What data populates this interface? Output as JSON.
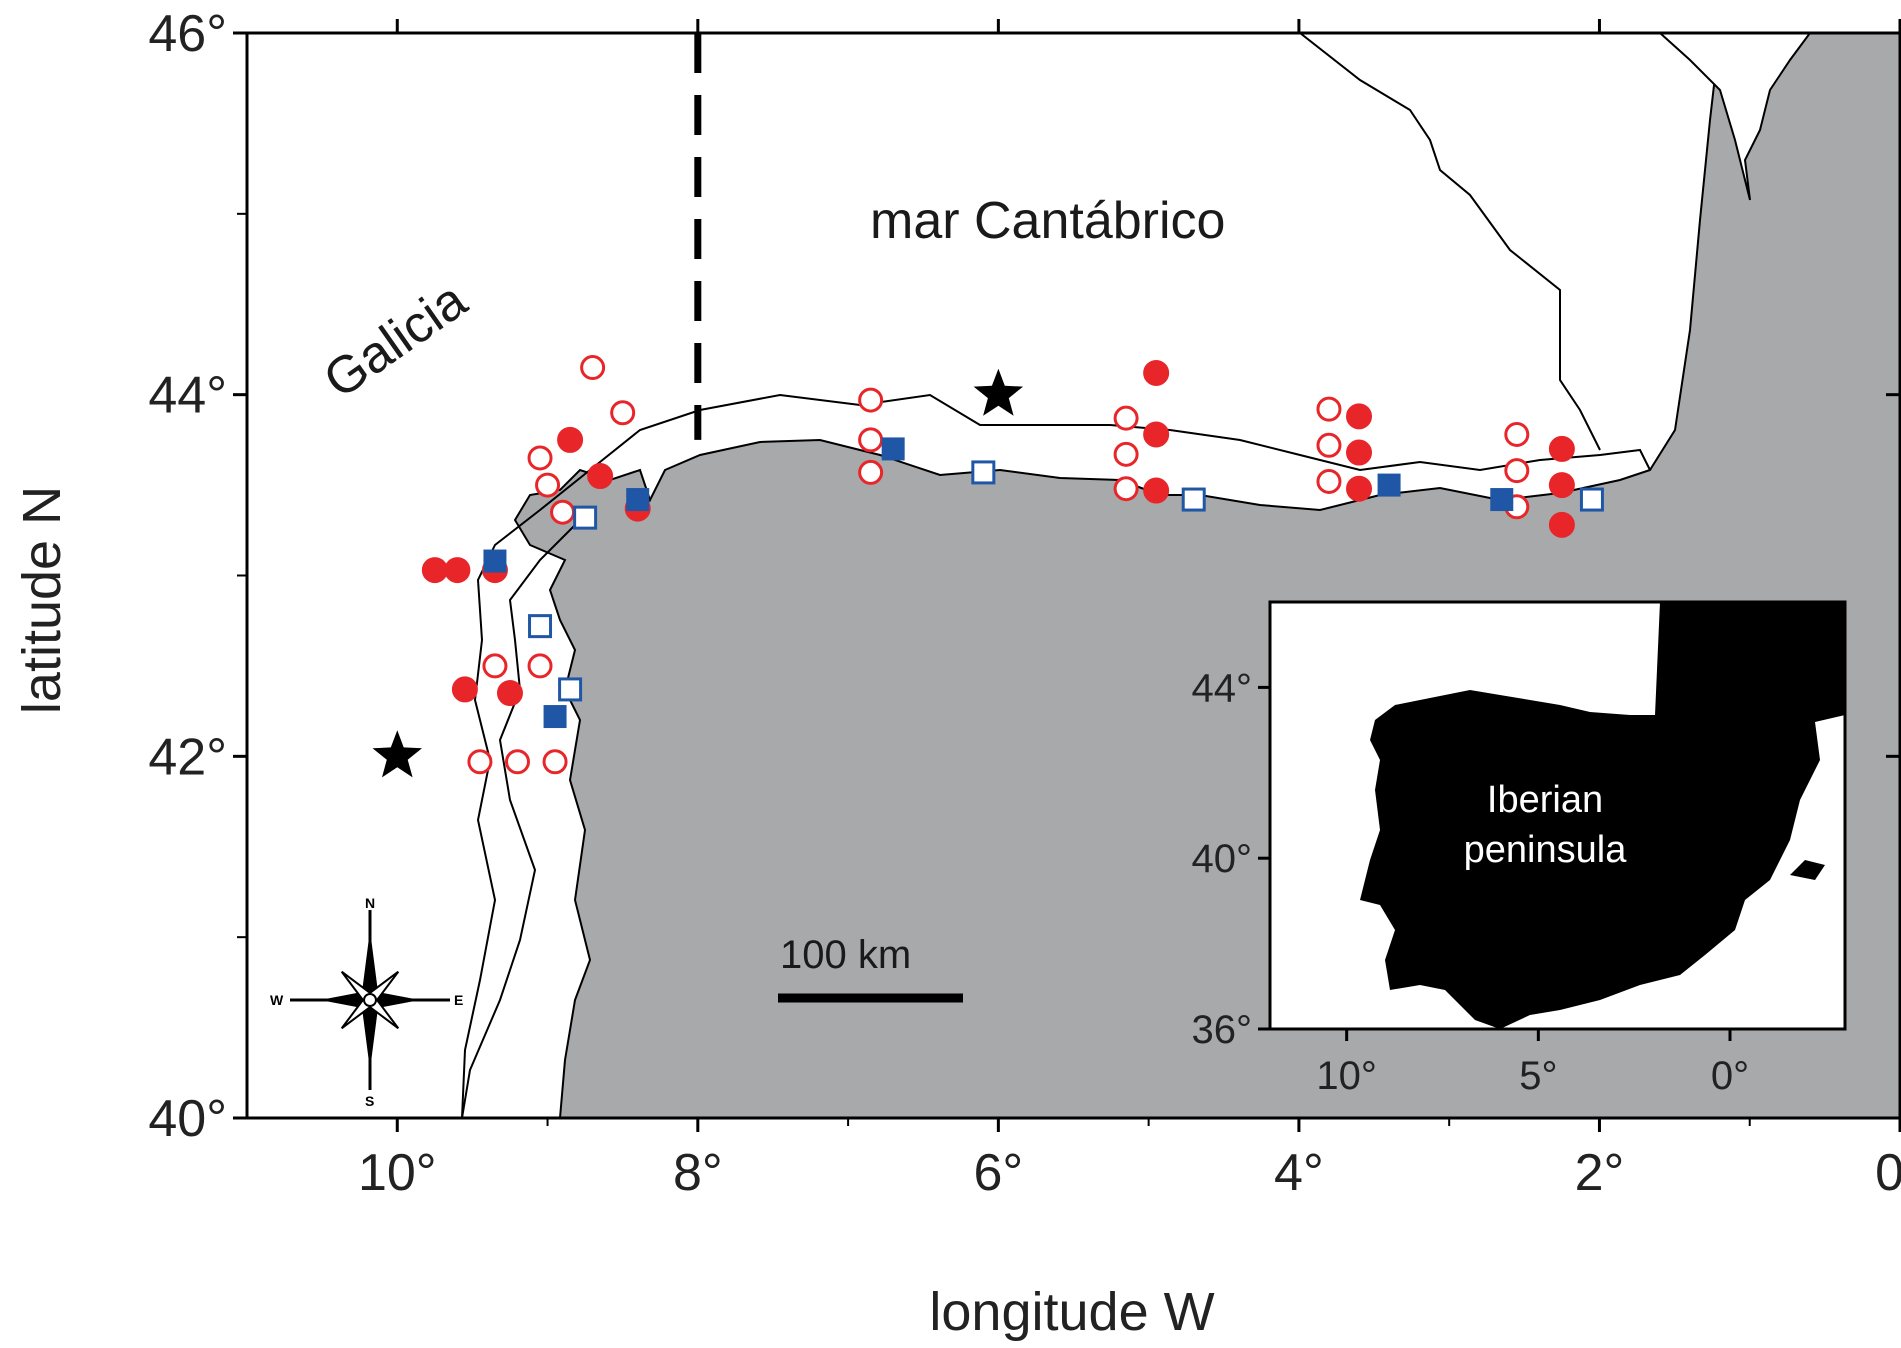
{
  "map": {
    "xlabel": "longitude W",
    "ylabel": "latitude N",
    "x_ticks": [
      "10°",
      "8°",
      "6°",
      "4°",
      "2°",
      "0°"
    ],
    "y_ticks": [
      "46°",
      "44°",
      "42°",
      "40°"
    ],
    "region_labels": {
      "sea": "mar Cantábrico",
      "coast": "Galicia"
    },
    "scale_bar": "100 km",
    "compass": {
      "n": "N",
      "s": "S",
      "e": "E",
      "w": "W"
    },
    "colors": {
      "land": "#a7a9ab",
      "open_circle": "#e8262a",
      "filled_circle": "#e8262a",
      "open_square": "#1f57a6",
      "filled_square": "#1f57a6",
      "star": "#000000"
    },
    "stars": [
      {
        "lon": 10.0,
        "lat": 42.0
      },
      {
        "lon": 6.0,
        "lat": 44.0
      }
    ],
    "open_circles": [
      {
        "lon": 8.7,
        "lat": 44.15
      },
      {
        "lon": 8.5,
        "lat": 43.9
      },
      {
        "lon": 9.05,
        "lat": 43.65
      },
      {
        "lon": 9.0,
        "lat": 43.5
      },
      {
        "lon": 8.9,
        "lat": 43.35
      },
      {
        "lon": 9.35,
        "lat": 42.5
      },
      {
        "lon": 9.05,
        "lat": 42.5
      },
      {
        "lon": 9.45,
        "lat": 41.97
      },
      {
        "lon": 9.2,
        "lat": 41.97
      },
      {
        "lon": 8.95,
        "lat": 41.97
      },
      {
        "lon": 6.85,
        "lat": 43.97
      },
      {
        "lon": 6.85,
        "lat": 43.75
      },
      {
        "lon": 6.85,
        "lat": 43.57
      },
      {
        "lon": 5.15,
        "lat": 43.87
      },
      {
        "lon": 5.15,
        "lat": 43.67
      },
      {
        "lon": 5.15,
        "lat": 43.48
      },
      {
        "lon": 3.8,
        "lat": 43.92
      },
      {
        "lon": 3.8,
        "lat": 43.72
      },
      {
        "lon": 3.8,
        "lat": 43.52
      },
      {
        "lon": 2.55,
        "lat": 43.78
      },
      {
        "lon": 2.55,
        "lat": 43.58
      },
      {
        "lon": 2.55,
        "lat": 43.38
      }
    ],
    "filled_circles": [
      {
        "lon": 8.85,
        "lat": 43.75
      },
      {
        "lon": 8.65,
        "lat": 43.55
      },
      {
        "lon": 8.4,
        "lat": 43.37
      },
      {
        "lon": 9.75,
        "lat": 43.03
      },
      {
        "lon": 9.6,
        "lat": 43.03
      },
      {
        "lon": 9.35,
        "lat": 43.03
      },
      {
        "lon": 9.55,
        "lat": 42.37
      },
      {
        "lon": 9.25,
        "lat": 42.35
      },
      {
        "lon": 4.95,
        "lat": 44.12
      },
      {
        "lon": 4.95,
        "lat": 43.78
      },
      {
        "lon": 4.95,
        "lat": 43.47
      },
      {
        "lon": 3.6,
        "lat": 43.88
      },
      {
        "lon": 3.6,
        "lat": 43.68
      },
      {
        "lon": 3.6,
        "lat": 43.48
      },
      {
        "lon": 2.25,
        "lat": 43.7
      },
      {
        "lon": 2.25,
        "lat": 43.5
      },
      {
        "lon": 2.25,
        "lat": 43.28
      }
    ],
    "open_squares": [
      {
        "lon": 8.75,
        "lat": 43.32
      },
      {
        "lon": 9.05,
        "lat": 42.72
      },
      {
        "lon": 8.85,
        "lat": 42.37
      },
      {
        "lon": 6.1,
        "lat": 43.57
      },
      {
        "lon": 4.7,
        "lat": 43.42
      },
      {
        "lon": 2.05,
        "lat": 43.42
      }
    ],
    "filled_squares": [
      {
        "lon": 8.4,
        "lat": 43.42
      },
      {
        "lon": 9.35,
        "lat": 43.08
      },
      {
        "lon": 8.95,
        "lat": 42.22
      },
      {
        "lon": 6.7,
        "lat": 43.7
      },
      {
        "lon": 3.4,
        "lat": 43.5
      },
      {
        "lon": 2.65,
        "lat": 43.42
      }
    ]
  },
  "inset": {
    "label_line1": "Iberian",
    "label_line2": "peninsula",
    "x_ticks": [
      "10°",
      "5°",
      "0°"
    ],
    "y_ticks": [
      "44°",
      "40°",
      "36°"
    ],
    "colors": {
      "land": "#000000"
    }
  }
}
